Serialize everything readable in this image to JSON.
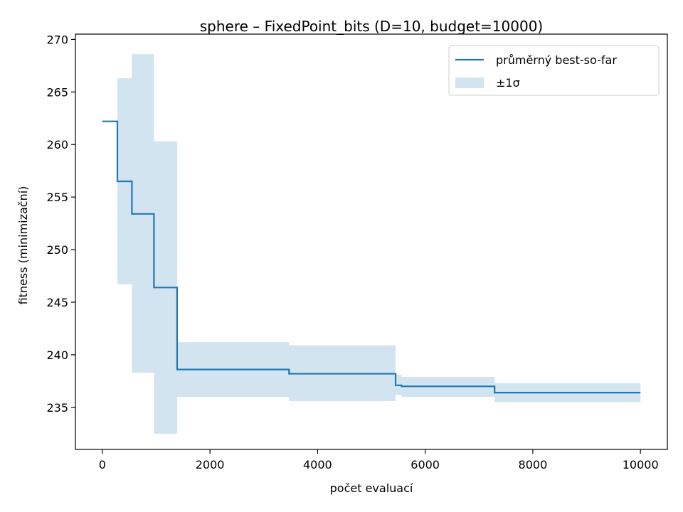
{
  "chart_data": {
    "type": "line",
    "title": "sphere – FixedPoint_bits (D=10, budget=10000)",
    "xlabel": "počet evaluací",
    "ylabel": "fitness (minimizační)",
    "xlim": [
      -500,
      10500
    ],
    "ylim": [
      231.0,
      270.5
    ],
    "xticks": [
      0,
      2000,
      4000,
      6000,
      8000,
      10000
    ],
    "yticks": [
      235,
      240,
      245,
      250,
      255,
      260,
      265,
      270
    ],
    "grid": false,
    "legend_position": "top-right",
    "colors": {
      "line": "#1f77b4",
      "band": "#1f77b4"
    },
    "series": [
      {
        "name": "průměrný best-so-far",
        "kind": "step",
        "x": [
          0,
          280,
          280,
          550,
          550,
          960,
          960,
          1390,
          1390,
          3470,
          3470,
          5450,
          5450,
          5560,
          5560,
          7290,
          7290,
          10000
        ],
        "y": [
          262.2,
          262.2,
          256.5,
          256.5,
          253.4,
          253.4,
          246.4,
          246.4,
          238.6,
          238.6,
          238.2,
          238.2,
          237.1,
          237.1,
          237.0,
          237.0,
          236.4,
          236.4
        ]
      },
      {
        "name": "±1σ",
        "kind": "band",
        "x": [
          280,
          550,
          550,
          960,
          960,
          1390,
          1390,
          3470,
          3470,
          5450,
          5450,
          5560,
          5560,
          7290,
          7290,
          10000
        ],
        "lower": [
          246.7,
          246.7,
          238.3,
          238.3,
          232.5,
          232.5,
          236.0,
          236.0,
          235.6,
          235.6,
          236.2,
          236.2,
          236.0,
          236.0,
          235.5,
          235.5
        ],
        "upper": [
          266.3,
          266.3,
          268.6,
          268.6,
          260.3,
          260.3,
          241.2,
          241.2,
          240.9,
          240.9,
          238.1,
          238.1,
          237.9,
          237.9,
          237.3,
          237.3
        ]
      }
    ]
  }
}
